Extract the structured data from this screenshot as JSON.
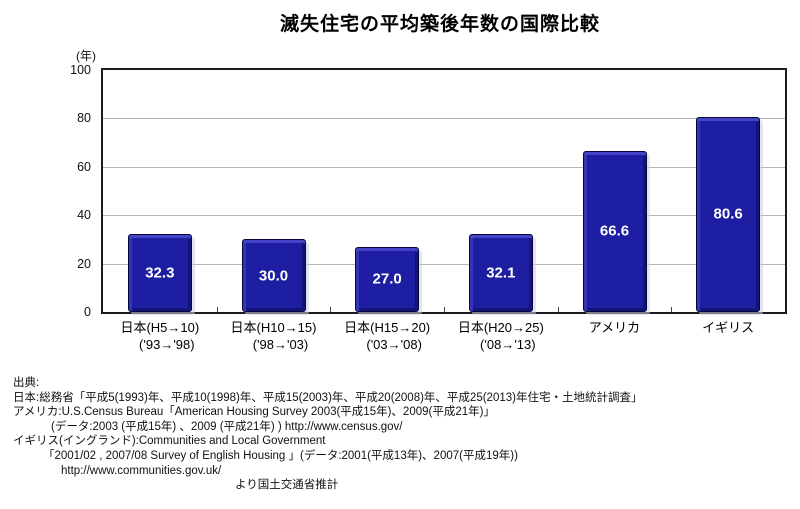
{
  "title": "滅失住宅の平均築後年数の国際比較",
  "chart_data": {
    "type": "bar",
    "title": "滅失住宅の平均築後年数の国際比較",
    "unit_label": "(年)",
    "xlabel": "",
    "ylabel": "(年)",
    "ylim": [
      0,
      100
    ],
    "yticks": [
      0,
      20,
      40,
      60,
      80,
      100
    ],
    "grid": true,
    "legend_position": "none",
    "categories": [
      {
        "line1": "日本(H5→10)",
        "line2": "('93→'98)"
      },
      {
        "line1": "日本(H10→15)",
        "line2": "('98→'03)"
      },
      {
        "line1": "日本(H15→20)",
        "line2": "('03→'08)"
      },
      {
        "line1": "日本(H20→25)",
        "line2": "('08→'13)"
      },
      {
        "line1": "アメリカ",
        "line2": ""
      },
      {
        "line1": "イギリス",
        "line2": ""
      }
    ],
    "values": [
      32.3,
      30.0,
      27.0,
      32.1,
      66.6,
      80.6
    ],
    "value_labels": [
      "32.3",
      "30.0",
      "27.0",
      "32.1",
      "66.6",
      "80.6"
    ],
    "bar_color": "#1e1ea2",
    "bar_edge_color": "#05053f",
    "grid_color": "#b5b5b5"
  },
  "source": {
    "lines": [
      {
        "indent": 0,
        "text": "出典:"
      },
      {
        "indent": 0,
        "text": "日本:総務省「平成5(1993)年、平成10(1998)年、平成15(2003)年、平成20(2008)年、平成25(2013)年住宅・土地統計調査」"
      },
      {
        "indent": 0,
        "text": "アメリカ:U.S.Census Bureau「American Housing Survey 2003(平成15年)、2009(平成21年)」"
      },
      {
        "indent": 38,
        "text": "(データ:2003 (平成15年) 、2009 (平成21年) )  http://www.census.gov/"
      },
      {
        "indent": 0,
        "text": "イギリス(イングランド):Communities and Local Government"
      },
      {
        "indent": 30,
        "text": "「2001/02 , 2007/08 Survey of English Housing 」(データ:2001(平成13年)、2007(平成19年))"
      },
      {
        "indent": 48,
        "text": "http://www.communities.gov.uk/"
      },
      {
        "indent": 222,
        "text": "より国土交通省推計"
      }
    ]
  }
}
